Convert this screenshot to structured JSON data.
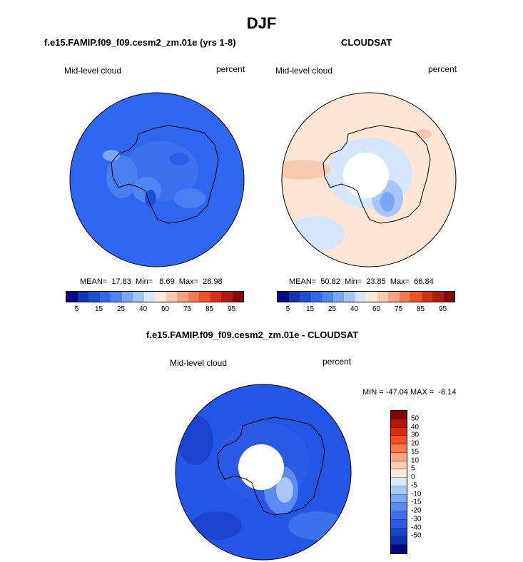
{
  "title": "DJF",
  "panels": {
    "model": {
      "title": "f.e15.FAMIP.f09_f09.cesm2_zm.01e (yrs 1-8)",
      "left_label": "Mid-level cloud",
      "right_label": "percent",
      "stats": "MEAN=  17.83  Min=   8.69  Max=  28.98",
      "base_color": "#2f66f0"
    },
    "obs": {
      "title": "CLOUDSAT",
      "left_label": "Mid-level cloud",
      "right_label": "percent",
      "stats": "MEAN=  50.82  Min=  23.85  Max=  66.84",
      "base_color": "#fde6d6"
    },
    "diff": {
      "title": "f.e15.FAMIP.f09_f09.cesm2_zm.01e - CLOUDSAT",
      "left_label": "Mid-level cloud",
      "right_label": "percent",
      "stats": "MIN = -47.04 MAX =  -8.14",
      "base_color": "#2355e6"
    }
  },
  "colorbar_abs": {
    "colors": [
      "#08088a",
      "#1034b8",
      "#1c4fd6",
      "#2f66f0",
      "#4f86f5",
      "#7aa6f7",
      "#a6c6fb",
      "#d6e6fd",
      "#fde8dc",
      "#f9c9ad",
      "#f6a27f",
      "#f2784e",
      "#ee5223",
      "#d8310f",
      "#b01c06",
      "#830a00"
    ],
    "tick_labels": [
      "5",
      "15",
      "25",
      "40",
      "60",
      "75",
      "85",
      "95"
    ]
  },
  "colorbar_diff": {
    "colors": [
      "#850000",
      "#b41608",
      "#d62d0c",
      "#f04e1d",
      "#f5774a",
      "#f8a27f",
      "#fbc9ad",
      "#fde8dc",
      "#d9e7fc",
      "#a9c8fa",
      "#7ea8f6",
      "#5b8af3",
      "#3d70ef",
      "#2b5ae6",
      "#1c44d0",
      "#1030b0",
      "#06087c"
    ],
    "tick_labels": [
      "50",
      "40",
      "30",
      "20",
      "15",
      "10",
      "5",
      "0",
      "-5",
      "-10",
      "-15",
      "-20",
      "-30",
      "-40",
      "-50"
    ]
  }
}
